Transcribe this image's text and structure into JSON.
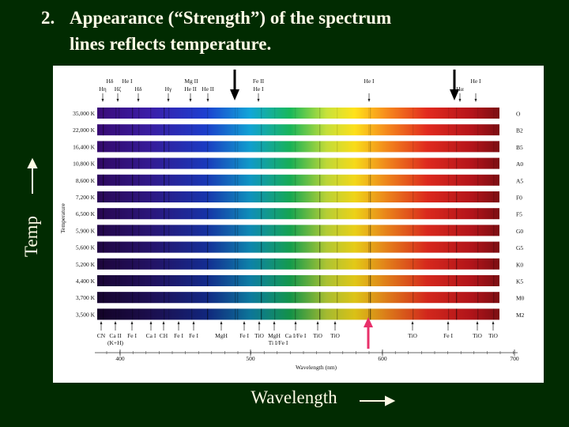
{
  "slide": {
    "title": {
      "number": "2.",
      "lines": [
        "Appearance (“Strength”) of the spectrum",
        "lines reflects temperature."
      ]
    },
    "side_label": "Temp",
    "bottom_label": "Wavelength",
    "figure": {
      "y_axis_label": "Temperature",
      "x_axis_label": "Wavelength (nm)",
      "temperatures": [
        "35,000 K",
        "22,000 K",
        "16,400 K",
        "10,800 K",
        "8,600 K",
        "7,200 K",
        "6,500 K",
        "5,900 K",
        "5,600 K",
        "5,200 K",
        "4,400 K",
        "3,700 K",
        "3,500 K"
      ],
      "classes": [
        "O",
        "B2",
        "B5",
        "A0",
        "A5",
        "F0",
        "F5",
        "G0",
        "G5",
        "K0",
        "K5",
        "M0",
        "M2"
      ],
      "top_lines_row1": [
        "Hδ",
        "He I",
        "Mg II",
        "Fe II",
        "He I",
        "He I"
      ],
      "top_lines_row2": [
        "Hη",
        "Hζ",
        "Hδ",
        "Hγ",
        "He II",
        "He II",
        "He I",
        "Hα"
      ],
      "bottom_lines_row1": [
        "CN",
        "Ca II",
        "Fe I",
        "Ca I",
        "CH",
        "Fe I",
        "Fe I",
        "MgH",
        "Fe I",
        "TiO",
        "MgH",
        "Ca I/Fe I",
        "TiO",
        "TiO",
        "TiO",
        "Fe I",
        "TiO",
        "TiO"
      ],
      "bottom_lines_row2": [
        "(K+H)",
        "Ti I/Fe I"
      ],
      "wavelength_ticks": [
        "400",
        "500",
        "600",
        "700"
      ]
    }
  }
}
